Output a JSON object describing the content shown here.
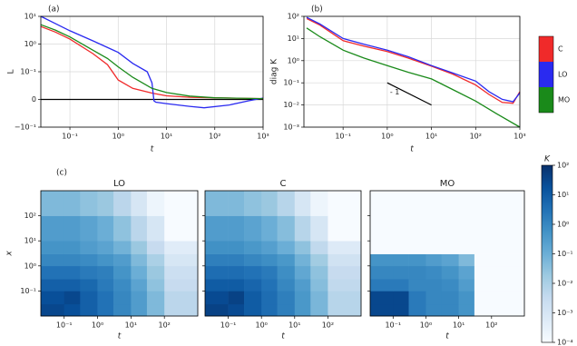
{
  "chart_data": [
    {
      "type": "line",
      "label": "(a)",
      "xlabel": "t",
      "ylabel": "L",
      "xscale": "log",
      "yscale": "symlog",
      "linthresh": 0.1,
      "xlim": [
        0.025,
        1000
      ],
      "ylim": [
        -0.1,
        10
      ],
      "grid": true,
      "hline": 0,
      "xticks": [
        {
          "value": 0.1,
          "label": "10⁻¹"
        },
        {
          "value": 1,
          "label": "10⁰"
        },
        {
          "value": 10,
          "label": "10¹"
        },
        {
          "value": 100,
          "label": "10²"
        },
        {
          "value": 1000,
          "label": "10³"
        }
      ],
      "yticks": [
        {
          "value": -0.1,
          "label": "−10⁻¹"
        },
        0,
        {
          "value": 0.1,
          "label": "10⁻¹"
        },
        {
          "value": 1,
          "label": "10⁰"
        },
        {
          "value": 10,
          "label": "10¹"
        }
      ],
      "series": [
        {
          "name": "C",
          "color": "#f02a2a",
          "x": [
            0.025,
            0.05,
            0.1,
            0.3,
            0.6,
            1,
            2,
            5,
            10,
            30,
            100,
            1000
          ],
          "values": [
            4.3,
            2.7,
            1.5,
            0.45,
            0.18,
            0.07,
            0.04,
            0.023,
            0.013,
            0.008,
            0.006,
            0.003
          ]
        },
        {
          "name": "LO",
          "color": "#2a2af0",
          "x": [
            0.025,
            0.05,
            0.1,
            0.3,
            1,
            2,
            4,
            5,
            5.5,
            6,
            10,
            30,
            60,
            200,
            500,
            1000
          ],
          "values": [
            10,
            5.5,
            3,
            1.3,
            0.5,
            0.2,
            0.1,
            0.06,
            -0.005,
            -0.01,
            -0.015,
            -0.025,
            -0.03,
            -0.02,
            -0.005,
            0.005
          ]
        },
        {
          "name": "MO",
          "color": "#1a8a1a",
          "x": [
            0.025,
            0.05,
            0.1,
            0.3,
            0.6,
            1,
            2,
            5,
            10,
            30,
            100,
            1000
          ],
          "values": [
            5,
            3.2,
            1.8,
            0.6,
            0.3,
            0.15,
            0.08,
            0.04,
            0.025,
            0.012,
            0.006,
            0.003
          ]
        }
      ]
    },
    {
      "type": "line",
      "label": "(b)",
      "xlabel": "t",
      "ylabel": "diag K",
      "xscale": "log",
      "yscale": "log",
      "xlim": [
        0.013,
        1000
      ],
      "ylim": [
        0.001,
        100
      ],
      "grid": true,
      "xticks": [
        {
          "value": 0.1,
          "label": "10⁻¹"
        },
        {
          "value": 1,
          "label": "10⁰"
        },
        {
          "value": 10,
          "label": "10¹"
        },
        {
          "value": 100,
          "label": "10²"
        },
        {
          "value": 1000,
          "label": "10³"
        }
      ],
      "yticks": [
        {
          "value": 0.001,
          "label": "10⁻³"
        },
        {
          "value": 0.01,
          "label": "10⁻²"
        },
        {
          "value": 0.1,
          "label": "10⁻¹"
        },
        {
          "value": 1,
          "label": "10⁰"
        },
        {
          "value": 10,
          "label": "10¹"
        },
        {
          "value": 100,
          "label": "10²"
        }
      ],
      "guide": {
        "x": [
          1,
          10
        ],
        "values": [
          0.1,
          0.01
        ]
      },
      "annotation": "- 1",
      "series": [
        {
          "name": "C",
          "color": "#f02a2a",
          "x": [
            0.015,
            0.03,
            0.1,
            0.3,
            1,
            3,
            10,
            30,
            100,
            200,
            400,
            700,
            1000
          ],
          "values": [
            80,
            40,
            8,
            4.5,
            2.6,
            1.3,
            0.56,
            0.25,
            0.08,
            0.03,
            0.013,
            0.012,
            0.04
          ]
        },
        {
          "name": "LO",
          "color": "#2a2af0",
          "x": [
            0.015,
            0.03,
            0.1,
            0.3,
            1,
            3,
            10,
            30,
            100,
            200,
            400,
            700,
            1000
          ],
          "values": [
            90,
            45,
            10,
            5.5,
            3,
            1.5,
            0.6,
            0.28,
            0.12,
            0.04,
            0.018,
            0.014,
            0.035
          ]
        },
        {
          "name": "MO",
          "color": "#1a8a1a",
          "x": [
            0.015,
            0.03,
            0.1,
            0.3,
            1,
            3,
            10,
            30,
            100,
            300,
            1000
          ],
          "values": [
            30,
            12,
            3,
            1.3,
            0.6,
            0.3,
            0.15,
            0.05,
            0.015,
            0.004,
            0.001
          ]
        }
      ]
    },
    {
      "type": "heatmap",
      "label": "(c)",
      "xlabel": "t",
      "ylabel": "x",
      "cmap": "Blues",
      "xlim": [
        0.02,
        1000
      ],
      "ylim": [
        0.01,
        1000
      ],
      "x_edges": [
        0.02,
        0.1,
        0.3,
        1,
        3,
        10,
        30,
        100,
        1000
      ],
      "y_edges": [
        0.01,
        0.03,
        0.1,
        0.3,
        1,
        3,
        10,
        100,
        1000
      ],
      "xticks": [
        {
          "value": 0.1,
          "label": "10⁻¹"
        },
        {
          "value": 1,
          "label": "10⁰"
        },
        {
          "value": 10,
          "label": "10¹"
        },
        {
          "value": 100,
          "label": "10²"
        }
      ],
      "yticks": [
        {
          "value": 0.1,
          "label": "10⁻¹"
        },
        {
          "value": 1,
          "label": "10⁰"
        },
        {
          "value": 10,
          "label": "10¹"
        },
        {
          "value": 100,
          "label": "10²"
        }
      ],
      "colorbar": {
        "label": "K",
        "zlim": [
          0.0001,
          100
        ],
        "ticks": [
          {
            "value": 0.0001,
            "label": "10⁻⁴"
          },
          {
            "value": 0.001,
            "label": "10⁻³"
          },
          {
            "value": 0.01,
            "label": "10⁻²"
          },
          {
            "value": 0.1,
            "label": "10⁻¹"
          },
          {
            "value": 1,
            "label": "10⁰"
          },
          {
            "value": 10,
            "label": "10¹"
          },
          {
            "value": 100,
            "label": "10²"
          }
        ]
      },
      "panels": [
        {
          "title": "LO",
          "z": [
            [
              30,
              20,
              8,
              3,
              1,
              0.3,
              0.05,
              0.005
            ],
            [
              20,
              30,
              8,
              3,
              1,
              0.3,
              0.05,
              0.005
            ],
            [
              8,
              8,
              5,
              2,
              0.8,
              0.2,
              0.03,
              0.003
            ],
            [
              3,
              3,
              2,
              1.5,
              0.5,
              0.1,
              0.02,
              0.002
            ],
            [
              1,
              1,
              0.8,
              0.5,
              0.3,
              0.05,
              0.01,
              0.001
            ],
            [
              0.5,
              0.5,
              0.3,
              0.2,
              0.08,
              0.02,
              0.003,
              0.0005
            ],
            [
              0.3,
              0.3,
              0.2,
              0.1,
              0.03,
              0.005,
              0.001,
              0.0001
            ],
            [
              0.05,
              0.05,
              0.03,
              0.02,
              0.005,
              0.001,
              0.0002,
              0.0001
            ]
          ]
        },
        {
          "title": "C",
          "z": [
            [
              40,
              25,
              10,
              4,
              1.5,
              0.4,
              0.06,
              0.006
            ],
            [
              25,
              40,
              10,
              4,
              1.5,
              0.4,
              0.06,
              0.006
            ],
            [
              10,
              10,
              6,
              3,
              1,
              0.3,
              0.04,
              0.004
            ],
            [
              4,
              4,
              3,
              2,
              0.7,
              0.15,
              0.03,
              0.003
            ],
            [
              1.5,
              1.5,
              1,
              0.7,
              0.4,
              0.08,
              0.015,
              0.0015
            ],
            [
              0.6,
              0.6,
              0.4,
              0.25,
              0.1,
              0.03,
              0.004,
              0.0006
            ],
            [
              0.3,
              0.3,
              0.2,
              0.1,
              0.04,
              0.006,
              0.001,
              0.0001
            ],
            [
              0.05,
              0.05,
              0.03,
              0.02,
              0.006,
              0.001,
              0.0002,
              0.0001
            ]
          ]
        },
        {
          "title": "MO",
          "z": [
            [
              30,
              30,
              2,
              1,
              1,
              0.5,
              0.0001,
              0.0001
            ],
            [
              30,
              30,
              2,
              1,
              1,
              0.5,
              0.0001,
              0.0001
            ],
            [
              2,
              2,
              1,
              1,
              0.8,
              0.3,
              0.0001,
              0.0001
            ],
            [
              1,
              1,
              1,
              0.8,
              0.5,
              0.2,
              0.0001,
              0.0001
            ],
            [
              0.5,
              0.5,
              0.5,
              0.3,
              0.2,
              0.05,
              0.0001,
              0.0001
            ],
            [
              0.0001,
              0.0001,
              0.0001,
              0.0001,
              0.0001,
              0.0001,
              0.0001,
              0.0001
            ],
            [
              0.0001,
              0.0001,
              0.0001,
              0.0001,
              0.0001,
              0.0001,
              0.0001,
              0.0001
            ],
            [
              0.0001,
              0.0001,
              0.0001,
              0.0001,
              0.0001,
              0.0001,
              0.0001,
              0.0001
            ]
          ]
        }
      ]
    }
  ]
}
